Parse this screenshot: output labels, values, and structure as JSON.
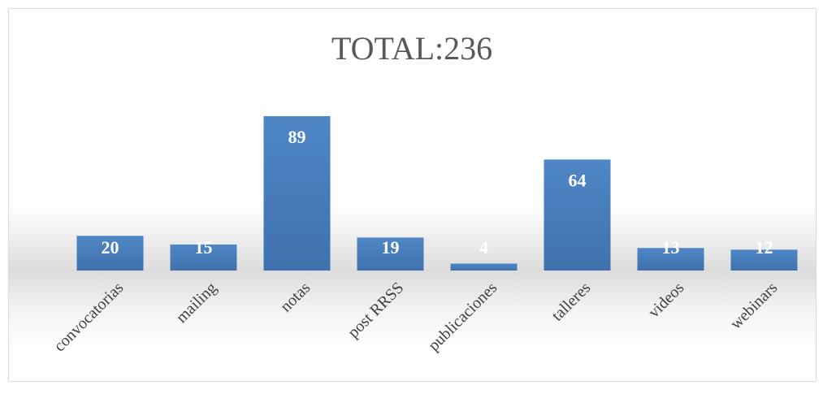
{
  "chart_data": {
    "type": "bar",
    "title": "TOTAL:236",
    "categories": [
      "convocatorias",
      "mailing",
      "notas",
      "post RRSS",
      "publicaciones",
      "talleres",
      "videos",
      "webinars"
    ],
    "values": [
      20,
      15,
      89,
      19,
      4,
      64,
      13,
      12
    ],
    "color": "#4a7ebb"
  }
}
